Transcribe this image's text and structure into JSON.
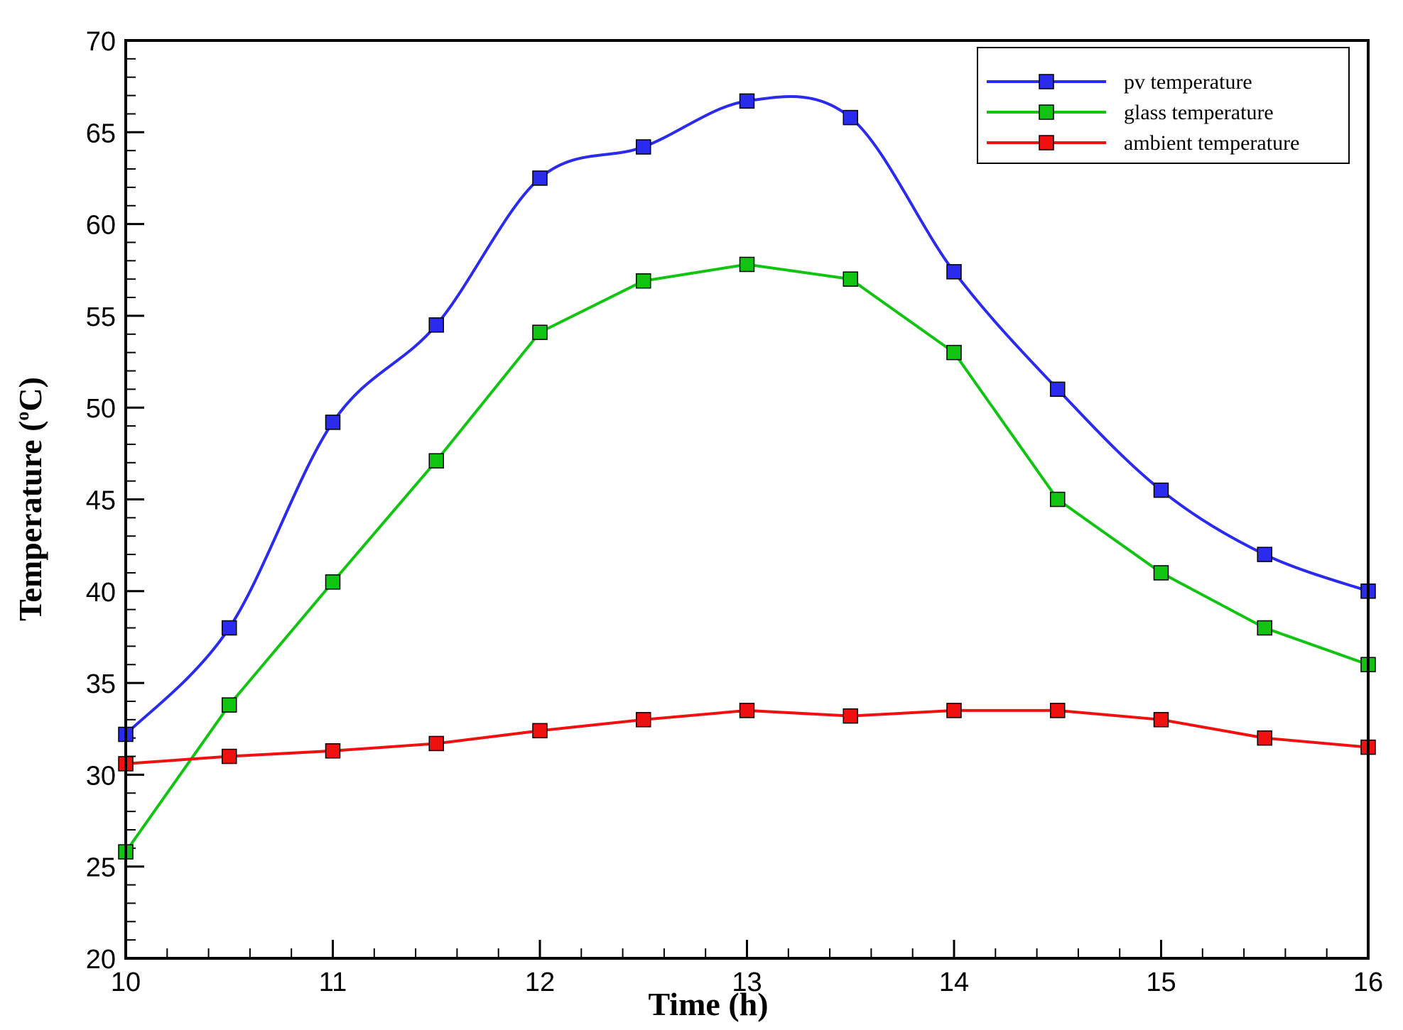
{
  "chart_data": {
    "type": "line",
    "title": "",
    "xlabel": "Time (h)",
    "ylabel": "Temperature (°C)",
    "ylabel_parts": {
      "text": "Temperature (",
      "degree": "o",
      "unit": "C)"
    },
    "xlim": [
      10,
      16
    ],
    "ylim": [
      20,
      70
    ],
    "xticks": [
      "10",
      "11",
      "12",
      "13",
      "14",
      "15",
      "16"
    ],
    "yticks": [
      "20",
      "25",
      "30",
      "35",
      "40",
      "45",
      "50",
      "55",
      "60",
      "65",
      "70"
    ],
    "grid": false,
    "legend_position": "top-right",
    "x": [
      10,
      10.5,
      11,
      11.5,
      12,
      12.5,
      13,
      13.5,
      14,
      14.5,
      15,
      15.5,
      16
    ],
    "series": [
      {
        "name": "pv temperature",
        "color": "#2b2bf0",
        "smooth": true,
        "values": [
          32.2,
          38.0,
          49.2,
          54.5,
          62.5,
          64.2,
          66.7,
          65.8,
          57.4,
          51.0,
          45.5,
          42.0,
          40.0
        ]
      },
      {
        "name": "glass temperature",
        "color": "#11c411",
        "smooth": false,
        "values": [
          25.8,
          33.8,
          40.5,
          47.1,
          54.1,
          56.9,
          57.8,
          57.0,
          53.0,
          45.0,
          41.0,
          38.0,
          36.0
        ]
      },
      {
        "name": "ambient temperature",
        "color": "#f01010",
        "smooth": false,
        "values": [
          30.6,
          31.0,
          31.3,
          31.7,
          32.4,
          33.0,
          33.5,
          33.2,
          33.5,
          33.5,
          33.0,
          32.0,
          31.5
        ]
      }
    ]
  }
}
